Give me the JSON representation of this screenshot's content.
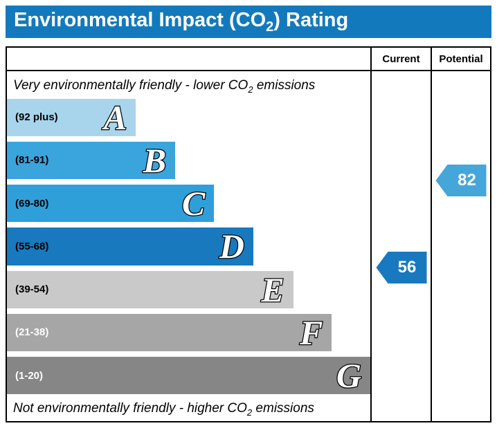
{
  "title": {
    "pre": "Environmental Impact (CO",
    "sub": "2",
    "post": ") Rating"
  },
  "header": {
    "current": "Current",
    "potential": "Potential"
  },
  "notes": {
    "top": {
      "pre": "Very environmentally friendly - lower CO",
      "sub": "2",
      "post": " emissions"
    },
    "bottom": {
      "pre": "Not environmentally friendly - higher CO",
      "sub": "2",
      "post": " emissions"
    }
  },
  "bands": [
    {
      "letter": "A",
      "range": "(92 plus)",
      "color": "#a8d5ec",
      "width_pct": 35.5,
      "label_color": "#000000"
    },
    {
      "letter": "B",
      "range": "(81-91)",
      "color": "#3aa4dc",
      "width_pct": 46.3,
      "label_color": "#000000"
    },
    {
      "letter": "C",
      "range": "(69-80)",
      "color": "#2f9fd9",
      "width_pct": 57.0,
      "label_color": "#000000"
    },
    {
      "letter": "D",
      "range": "(55-68)",
      "color": "#1879bf",
      "width_pct": 67.8,
      "label_color": "#000000"
    },
    {
      "letter": "E",
      "range": "(39-54)",
      "color": "#c9c9c9",
      "width_pct": 78.8,
      "label_color": "#000000"
    },
    {
      "letter": "F",
      "range": "(21-38)",
      "color": "#a6a6a6",
      "width_pct": 89.4,
      "label_color": "#ffffff"
    },
    {
      "letter": "G",
      "range": "(1-20)",
      "color": "#868686",
      "width_pct": 100,
      "label_color": "#ffffff"
    }
  ],
  "markers": {
    "current": {
      "value": "56",
      "color": "#1879bf",
      "band": "D"
    },
    "potential": {
      "value": "82",
      "color": "#45a6da",
      "band": "B"
    }
  },
  "chart_data": {
    "type": "bar",
    "title": "Environmental Impact (CO2) Rating",
    "categories": [
      "A (92 plus)",
      "B (81-91)",
      "C (69-80)",
      "D (55-68)",
      "E (39-54)",
      "F (21-38)",
      "G (1-20)"
    ],
    "values": [
      35.5,
      46.3,
      57.0,
      67.8,
      78.8,
      89.4,
      100
    ],
    "series": [
      {
        "name": "Current",
        "value": 56,
        "band": "D"
      },
      {
        "name": "Potential",
        "value": 82,
        "band": "B"
      }
    ],
    "annotations": [
      "Very environmentally friendly - lower CO2 emissions",
      "Not environmentally friendly - higher CO2 emissions"
    ],
    "legend_position": "none",
    "grid": false
  }
}
